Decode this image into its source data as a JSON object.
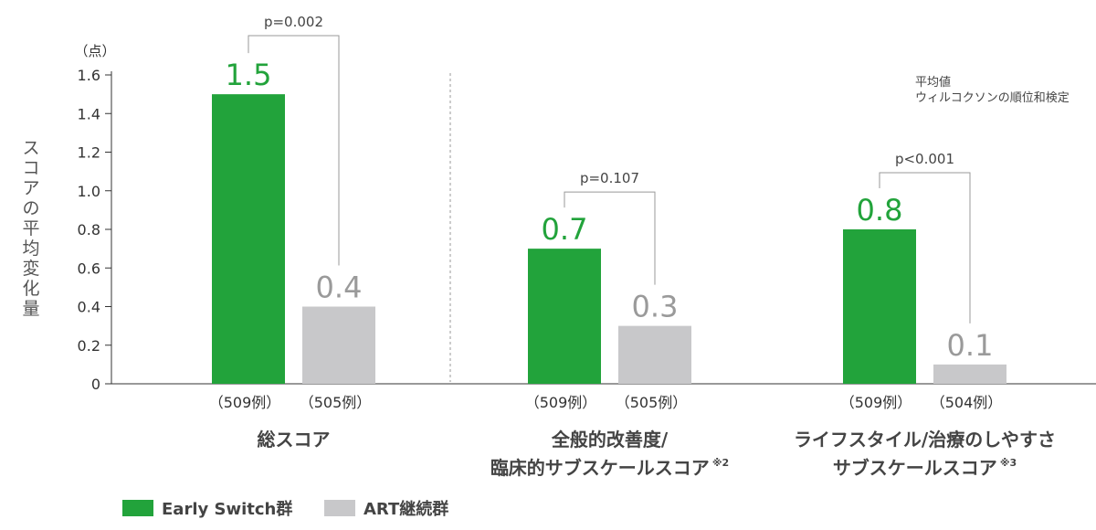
{
  "chart_data": {
    "type": "bar",
    "ylabel": "スコアの平均変化量",
    "unit": "（点）",
    "ylim": [
      0,
      1.6
    ],
    "yticks": [
      "0",
      "0.2",
      "0.4",
      "0.6",
      "0.8",
      "1.0",
      "1.2",
      "1.4",
      "1.6"
    ],
    "note_lines": [
      "平均値",
      "ウィルコクソンの順位和検定"
    ],
    "groups": [
      {
        "label_lines": [
          "総スコア"
        ],
        "marker": "",
        "p_label": "p=0.002",
        "early": {
          "value": 1.5,
          "label": "1.5",
          "n": "（509例）"
        },
        "art": {
          "value": 0.4,
          "label": "0.4",
          "n": "（505例）"
        }
      },
      {
        "label_lines": [
          "全般的改善度/",
          "臨床的サブスケールスコア"
        ],
        "marker": "※2",
        "p_label": "p=0.107",
        "early": {
          "value": 0.7,
          "label": "0.7",
          "n": "（509例）"
        },
        "art": {
          "value": 0.3,
          "label": "0.3",
          "n": "（505例）"
        }
      },
      {
        "label_lines": [
          "ライフスタイル/治療のしやすさ",
          "サブスケールスコア"
        ],
        "marker": "※3",
        "p_label": "p<0.001",
        "early": {
          "value": 0.8,
          "label": "0.8",
          "n": "（509例）"
        },
        "art": {
          "value": 0.1,
          "label": "0.1",
          "n": "（504例）"
        }
      }
    ],
    "series": [
      {
        "name": "Early Switch群",
        "color": "#22A33B"
      },
      {
        "name": "ART継続群",
        "color": "#C8C8CA"
      }
    ]
  }
}
